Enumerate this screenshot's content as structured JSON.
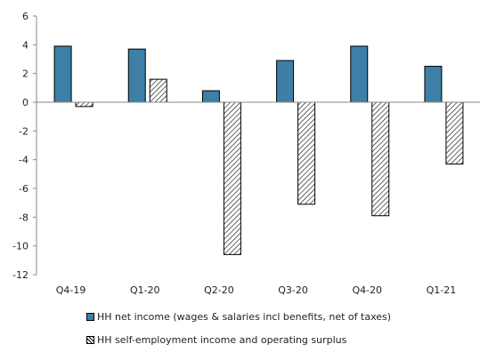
{
  "chart_data": {
    "type": "bar",
    "categories": [
      "Q4-19",
      "Q1-20",
      "Q2-20",
      "Q3-20",
      "Q4-20",
      "Q1-21"
    ],
    "series": [
      {
        "name": "HH net income (wages & salaries incl benefits, net of taxes)",
        "values": [
          3.9,
          3.7,
          0.8,
          2.9,
          3.9,
          2.5
        ],
        "color": "#3d7fa6",
        "pattern": "solid"
      },
      {
        "name": "HH self-employment income and operating surplus",
        "values": [
          -0.3,
          1.6,
          -10.6,
          -7.1,
          -7.9,
          -4.3
        ],
        "color": "#ffffff",
        "pattern": "diagonal-hatch"
      }
    ],
    "ylim": [
      -12,
      6
    ],
    "yticks": [
      "6",
      "4",
      "2",
      "0",
      "-2",
      "-4",
      "-6",
      "-8",
      "-10",
      "-12"
    ],
    "grid": false,
    "legend_position": "bottom",
    "title": "",
    "xlabel": "",
    "ylabel": ""
  }
}
